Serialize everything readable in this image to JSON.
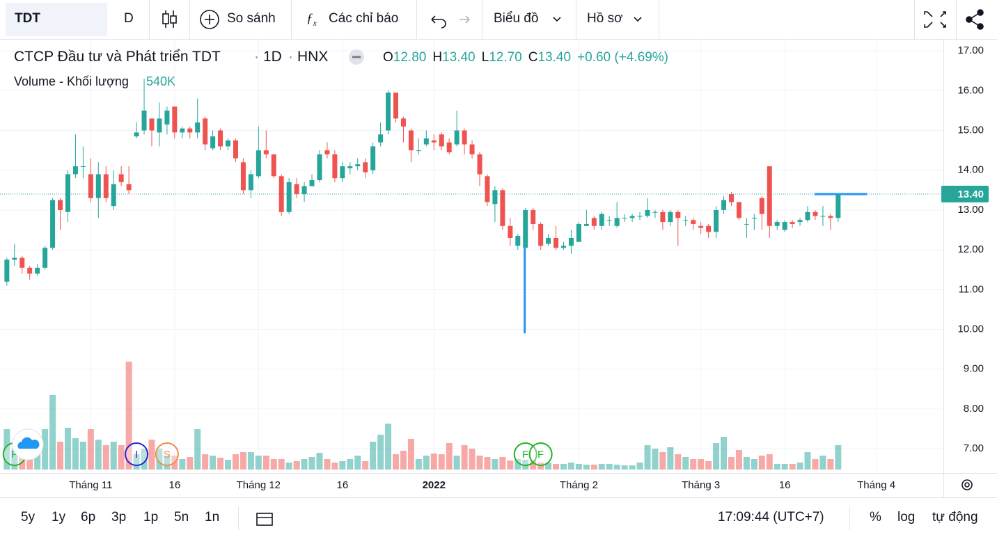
{
  "toolbar": {
    "symbol": "TDT",
    "interval": "D",
    "compare": "So sánh",
    "indicators": "Các chỉ báo",
    "chart_type": "Biểu đồ",
    "profile": "Hồ sơ"
  },
  "chart_data": {
    "type": "candlestick",
    "title": "CTCP Đầu tư và Phát triển TDT",
    "interval": "1D",
    "exchange": "HNX",
    "ohlc_legend": [
      {
        "key": "O",
        "value": "12.80"
      },
      {
        "key": "H",
        "value": "13.40"
      },
      {
        "key": "L",
        "value": "12.70"
      },
      {
        "key": "C",
        "value": "13.40"
      }
    ],
    "change": "+0.60 (+4.69%)",
    "up_color": "#26a69a",
    "down_color": "#ef5350",
    "grid": true,
    "open": [
      11.2,
      11.75,
      11.8,
      11.55,
      11.4,
      11.55,
      12.05,
      13.25,
      12.95,
      13.9,
      14.1,
      13.9,
      13.3,
      13.9,
      13.1,
      13.9,
      13.65,
      14.85,
      15.0,
      15.3,
      14.95,
      15.15,
      15.6,
      14.95,
      15.05,
      14.95,
      15.3,
      14.55,
      15.0,
      14.6,
      14.75,
      14.2,
      13.5,
      13.85,
      14.5,
      14.4,
      13.85,
      12.95,
      13.65,
      13.4,
      13.6,
      13.75,
      14.5,
      14.4,
      13.8,
      14.05,
      14.1,
      14.2,
      14.0,
      14.7,
      15.0,
      15.95,
      15.3,
      15.0,
      14.5,
      14.65,
      14.75,
      14.9,
      14.7,
      14.65,
      15.0,
      14.65,
      14.4,
      13.85,
      13.15,
      13.5,
      12.6,
      12.1,
      12.05,
      13.0,
      12.65,
      12.15,
      12.3,
      12.05,
      12.1,
      12.2,
      12.6,
      12.8,
      12.6,
      12.75,
      12.6,
      12.8,
      12.8,
      12.85,
      12.85,
      12.95,
      12.95,
      12.7,
      12.95,
      12.75,
      12.75,
      12.6,
      12.6,
      12.45,
      13.0,
      13.4,
      13.2,
      12.65,
      12.8,
      13.3,
      14.1,
      12.6,
      12.5,
      12.7,
      12.7,
      12.75,
      12.95,
      12.85,
      12.85,
      12.8
    ],
    "high": [
      11.8,
      12.15,
      11.85,
      11.6,
      11.65,
      12.1,
      13.3,
      13.3,
      14.0,
      14.9,
      14.6,
      14.3,
      14.2,
      14.1,
      14.0,
      14.1,
      14.1,
      15.2,
      16.3,
      15.3,
      15.7,
      15.6,
      15.6,
      15.1,
      15.1,
      15.8,
      15.35,
      15.0,
      15.05,
      14.8,
      14.8,
      14.3,
      14.0,
      15.1,
      15.0,
      14.4,
      13.9,
      13.8,
      13.8,
      13.7,
      13.9,
      14.5,
      14.7,
      14.5,
      14.2,
      14.2,
      14.3,
      14.3,
      14.7,
      15.2,
      16.0,
      15.95,
      15.35,
      15.05,
      14.8,
      15.0,
      14.9,
      14.95,
      14.8,
      15.5,
      15.05,
      14.75,
      14.45,
      13.9,
      13.6,
      13.55,
      12.8,
      12.4,
      13.05,
      13.05,
      12.7,
      12.4,
      12.6,
      12.2,
      12.5,
      12.7,
      13.0,
      12.85,
      12.95,
      12.85,
      13.2,
      12.9,
      12.9,
      12.95,
      13.3,
      13.0,
      13.0,
      13.0,
      13.0,
      12.85,
      12.8,
      12.7,
      12.65,
      13.1,
      13.35,
      13.45,
      13.2,
      12.8,
      12.9,
      13.35,
      14.1,
      12.75,
      12.75,
      12.75,
      12.8,
      13.1,
      13.0,
      13.1,
      12.9,
      13.4
    ],
    "low": [
      11.1,
      11.6,
      11.4,
      11.25,
      11.35,
      11.5,
      12.0,
      12.5,
      12.7,
      13.8,
      13.8,
      13.2,
      12.8,
      13.2,
      13.0,
      13.6,
      13.4,
      14.8,
      14.9,
      14.6,
      14.6,
      14.9,
      14.8,
      14.8,
      14.8,
      14.8,
      14.5,
      14.5,
      14.5,
      14.5,
      14.2,
      13.4,
      13.3,
      13.8,
      14.3,
      13.8,
      12.85,
      12.9,
      13.3,
      13.2,
      13.6,
      13.7,
      14.3,
      13.7,
      13.7,
      13.9,
      14.0,
      13.8,
      13.9,
      14.6,
      14.9,
      15.2,
      14.7,
      14.2,
      14.4,
      14.6,
      14.5,
      14.5,
      14.4,
      14.6,
      14.4,
      14.3,
      13.6,
      13.1,
      12.7,
      12.5,
      12.1,
      12.0,
      12.05,
      12.5,
      12.0,
      12.1,
      12.0,
      12.0,
      11.9,
      12.2,
      12.6,
      12.5,
      12.5,
      12.6,
      12.55,
      12.7,
      12.7,
      12.75,
      12.8,
      12.8,
      12.5,
      12.6,
      12.1,
      12.6,
      12.5,
      12.4,
      12.3,
      12.3,
      12.9,
      13.1,
      12.75,
      12.3,
      12.5,
      12.5,
      12.3,
      12.5,
      12.45,
      12.55,
      12.6,
      12.7,
      12.75,
      12.6,
      12.5,
      12.7
    ],
    "close": [
      11.75,
      11.8,
      11.55,
      11.4,
      11.55,
      12.05,
      13.25,
      13.0,
      13.9,
      14.1,
      14.1,
      13.3,
      13.9,
      13.3,
      13.65,
      13.7,
      13.5,
      14.95,
      15.5,
      15.0,
      15.3,
      15.5,
      14.95,
      15.05,
      14.95,
      15.2,
      14.65,
      14.85,
      14.6,
      14.75,
      14.3,
      13.5,
      13.9,
      14.5,
      14.4,
      13.85,
      12.95,
      13.7,
      13.4,
      13.6,
      13.75,
      14.4,
      14.4,
      13.8,
      14.1,
      14.1,
      14.15,
      13.95,
      14.6,
      14.9,
      15.95,
      15.3,
      15.1,
      14.5,
      14.5,
      14.8,
      14.7,
      14.6,
      14.45,
      15.0,
      14.65,
      14.4,
      13.9,
      13.2,
      13.5,
      12.6,
      12.3,
      12.35,
      13.0,
      12.65,
      12.1,
      12.3,
      12.05,
      12.1,
      12.3,
      12.65,
      12.65,
      12.6,
      12.9,
      12.75,
      12.8,
      12.8,
      12.85,
      12.85,
      13.0,
      12.95,
      12.7,
      12.95,
      12.8,
      12.75,
      12.65,
      12.55,
      12.45,
      13.0,
      13.25,
      13.2,
      12.8,
      12.65,
      12.8,
      12.9,
      12.6,
      12.7,
      12.7,
      12.65,
      12.75,
      12.95,
      12.85,
      12.85,
      12.8,
      13.4
    ],
    "volume": {
      "name": "Volume - Khối lượng",
      "last_label": "540K",
      "ylim": [
        0,
        3000000
      ],
      "values": [
        893000,
        462000,
        539000,
        431000,
        616000,
        893000,
        1648000,
        616000,
        924000,
        693000,
        616000,
        893000,
        662000,
        539000,
        616000,
        539000,
        2387000,
        339000,
        462000,
        662000,
        462000,
        308000,
        308000,
        231000,
        277000,
        893000,
        339000,
        308000,
        262000,
        216000,
        339000,
        385000,
        385000,
        308000,
        308000,
        231000,
        231000,
        154000,
        185000,
        231000,
        277000,
        370000,
        231000,
        154000,
        185000,
        231000,
        308000,
        185000,
        616000,
        770000,
        1016000,
        339000,
        416000,
        678000,
        231000,
        308000,
        354000,
        339000,
        585000,
        308000,
        539000,
        462000,
        308000,
        277000,
        231000,
        277000,
        200000,
        231000,
        216000,
        200000,
        154000,
        154000,
        123000,
        123000,
        154000,
        123000,
        108000,
        108000,
        123000,
        123000,
        108000,
        92000,
        92000,
        154000,
        539000,
        462000,
        385000,
        493000,
        339000,
        277000,
        231000,
        231000,
        185000,
        585000,
        724000,
        277000,
        431000,
        277000,
        231000,
        308000,
        339000,
        123000,
        123000,
        123000,
        154000,
        385000,
        231000,
        308000,
        231000,
        540000
      ]
    },
    "xlim": [
      -0.9,
      122.8
    ],
    "ylim": [
      6.39,
      17.3
    ],
    "xticks": [
      {
        "value": 11,
        "label": "Tháng 11"
      },
      {
        "value": 22,
        "label": "16"
      },
      {
        "value": 33,
        "label": "Tháng 12"
      },
      {
        "value": 44,
        "label": "16"
      },
      {
        "value": 56,
        "label": "2022",
        "bold": true
      },
      {
        "value": 75,
        "label": "Tháng 2"
      },
      {
        "value": 91,
        "label": "Tháng 3"
      },
      {
        "value": 102,
        "label": "16"
      },
      {
        "value": 114,
        "label": "Tháng 4"
      }
    ],
    "yticks": [
      {
        "value": 7,
        "label": "7.00"
      },
      {
        "value": 8,
        "label": "8.00"
      },
      {
        "value": 9,
        "label": "9.00"
      },
      {
        "value": 10,
        "label": "10.00"
      },
      {
        "value": 11,
        "label": "11.00"
      },
      {
        "value": 12,
        "label": "12.00"
      },
      {
        "value": 13,
        "label": "13.00"
      },
      {
        "value": 14,
        "label": "14.00"
      },
      {
        "value": 15,
        "label": "15.00"
      },
      {
        "value": 16,
        "label": "16.00"
      },
      {
        "value": 17,
        "label": "17.00"
      }
    ],
    "last_price": {
      "value": 13.4,
      "label": "13.40"
    },
    "drawings": [
      {
        "kind": "hline",
        "color": "#2196f3",
        "y": 13.4,
        "x": [
          105.9,
          112.8
        ]
      },
      {
        "kind": "vline",
        "color": "#2196f3",
        "x": 67.9,
        "y": [
          12.05,
          9.9
        ]
      }
    ],
    "events": [
      {
        "label": "F",
        "x": 1,
        "color": "#22b322"
      },
      {
        "label": "I",
        "x": 17,
        "color": "#2b1fd0"
      },
      {
        "label": "S",
        "x": 21,
        "color": "#f08a4b"
      },
      {
        "label": "F",
        "x": 68,
        "color": "#22b322"
      },
      {
        "label": "F",
        "x": 70,
        "color": "#22b322"
      }
    ]
  },
  "footer": {
    "ranges": [
      "5y",
      "1y",
      "6p",
      "3p",
      "1p",
      "5n",
      "1n"
    ],
    "time": "17:09:44 (UTC+7)",
    "percent": "%",
    "log": "log",
    "auto": "tự động"
  }
}
